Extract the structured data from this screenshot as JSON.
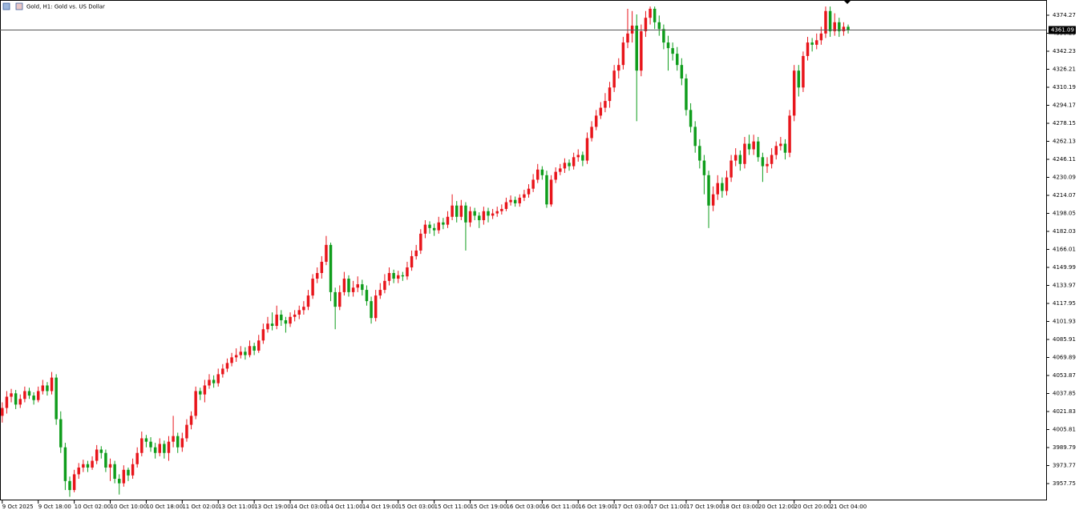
{
  "chart_data": {
    "type": "candlestick",
    "title": "Gold, H1: Gold vs. US Dollar",
    "up_color": "#e8151b",
    "down_color": "#0f9d1c",
    "current_price": 4361.09,
    "ylim": [
      3942.8,
      4387.8
    ],
    "yticks": [
      3957.75,
      3973.77,
      3989.79,
      4005.81,
      4021.83,
      4037.85,
      4053.87,
      4069.89,
      4085.91,
      4101.93,
      4117.95,
      4133.97,
      4149.99,
      4166.01,
      4182.03,
      4198.05,
      4214.07,
      4230.09,
      4246.11,
      4262.13,
      4278.15,
      4294.17,
      4310.19,
      4326.21,
      4342.23,
      4358.25,
      4374.27
    ],
    "xlim": [
      -0.5,
      232
    ],
    "xticks": [
      {
        "value": 0,
        "label": "9 Oct 2025"
      },
      {
        "value": 8,
        "label": "9 Oct 18:00"
      },
      {
        "value": 16,
        "label": "10 Oct 02:00"
      },
      {
        "value": 24,
        "label": "10 Oct 10:00"
      },
      {
        "value": 32,
        "label": "10 Oct 18:00"
      },
      {
        "value": 40,
        "label": "11 Oct 02:00"
      },
      {
        "value": 48,
        "label": "13 Oct 11:00"
      },
      {
        "value": 56,
        "label": "13 Oct 19:00"
      },
      {
        "value": 64,
        "label": "14 Oct 03:00"
      },
      {
        "value": 72,
        "label": "14 Oct 11:00"
      },
      {
        "value": 80,
        "label": "14 Oct 19:00"
      },
      {
        "value": 88,
        "label": "15 Oct 03:00"
      },
      {
        "value": 96,
        "label": "15 Oct 11:00"
      },
      {
        "value": 104,
        "label": "15 Oct 19:00"
      },
      {
        "value": 112,
        "label": "16 Oct 03:00"
      },
      {
        "value": 120,
        "label": "16 Oct 11:00"
      },
      {
        "value": 128,
        "label": "16 Oct 19:00"
      },
      {
        "value": 136,
        "label": "17 Oct 03:00"
      },
      {
        "value": 144,
        "label": "17 Oct 11:00"
      },
      {
        "value": 152,
        "label": "17 Oct 19:00"
      },
      {
        "value": 160,
        "label": "18 Oct 03:00"
      },
      {
        "value": 168,
        "label": "20 Oct 12:00"
      },
      {
        "value": 176,
        "label": "20 Oct 20:00"
      },
      {
        "value": 184,
        "label": "21 Oct 04:00"
      }
    ],
    "ohlc": [
      [
        4018,
        4030,
        4012,
        4025
      ],
      [
        4025,
        4040,
        4020,
        4035
      ],
      [
        4035,
        4042,
        4030,
        4038
      ],
      [
        4038,
        4041,
        4024,
        4028
      ],
      [
        4028,
        4037,
        4025,
        4033
      ],
      [
        4033,
        4044,
        4030,
        4040
      ],
      [
        4040,
        4043,
        4033,
        4036
      ],
      [
        4036,
        4039,
        4028,
        4032
      ],
      [
        4032,
        4044,
        4030,
        4040
      ],
      [
        4040,
        4050,
        4037,
        4045
      ],
      [
        4045,
        4048,
        4036,
        4040
      ],
      [
        4040,
        4057,
        4037,
        4052
      ],
      [
        4052,
        4055,
        4010,
        4015
      ],
      [
        4015,
        4022,
        3985,
        3990
      ],
      [
        3990,
        3994,
        3952,
        3960
      ],
      [
        3960,
        3964,
        3946,
        3952
      ],
      [
        3952,
        3970,
        3950,
        3966
      ],
      [
        3966,
        3976,
        3962,
        3972
      ],
      [
        3972,
        3979,
        3968,
        3975
      ],
      [
        3975,
        3978,
        3968,
        3972
      ],
      [
        3972,
        3982,
        3970,
        3978
      ],
      [
        3978,
        3992,
        3975,
        3988
      ],
      [
        3988,
        3991,
        3980,
        3985
      ],
      [
        3985,
        3988,
        3968,
        3972
      ],
      [
        3972,
        3980,
        3960,
        3975
      ],
      [
        3975,
        3978,
        3958,
        3962
      ],
      [
        3962,
        3966,
        3948,
        3958
      ],
      [
        3958,
        3974,
        3955,
        3970
      ],
      [
        3970,
        3972,
        3960,
        3965
      ],
      [
        3965,
        3980,
        3962,
        3975
      ],
      [
        3975,
        3990,
        3972,
        3985
      ],
      [
        3985,
        4004,
        3982,
        3998
      ],
      [
        3998,
        4001,
        3990,
        3995
      ],
      [
        3995,
        3999,
        3986,
        3990
      ],
      [
        3990,
        3994,
        3980,
        3985
      ],
      [
        3985,
        3998,
        3982,
        3993
      ],
      [
        3993,
        3996,
        3980,
        3985
      ],
      [
        3985,
        4000,
        3978,
        3995
      ],
      [
        3995,
        4018,
        3990,
        4000
      ],
      [
        4000,
        4003,
        3985,
        3990
      ],
      [
        3990,
        4003,
        3986,
        3998
      ],
      [
        3998,
        4015,
        3995,
        4010
      ],
      [
        4010,
        4022,
        4006,
        4018
      ],
      [
        4018,
        4044,
        4015,
        4040
      ],
      [
        4040,
        4043,
        4032,
        4037
      ],
      [
        4037,
        4050,
        4030,
        4045
      ],
      [
        4045,
        4055,
        4042,
        4050
      ],
      [
        4050,
        4054,
        4043,
        4047
      ],
      [
        4047,
        4060,
        4044,
        4055
      ],
      [
        4055,
        4064,
        4052,
        4060
      ],
      [
        4060,
        4069,
        4057,
        4065
      ],
      [
        4065,
        4074,
        4062,
        4070
      ],
      [
        4070,
        4078,
        4066,
        4072
      ],
      [
        4072,
        4080,
        4069,
        4075
      ],
      [
        4075,
        4079,
        4068,
        4072
      ],
      [
        4072,
        4085,
        4070,
        4080
      ],
      [
        4080,
        4083,
        4072,
        4076
      ],
      [
        4076,
        4090,
        4074,
        4085
      ],
      [
        4085,
        4100,
        4082,
        4095
      ],
      [
        4095,
        4106,
        4092,
        4100
      ],
      [
        4100,
        4110,
        4094,
        4098
      ],
      [
        4098,
        4116,
        4095,
        4108
      ],
      [
        4108,
        4112,
        4098,
        4103
      ],
      [
        4103,
        4106,
        4092,
        4100
      ],
      [
        4100,
        4110,
        4097,
        4106
      ],
      [
        4106,
        4112,
        4102,
        4108
      ],
      [
        4108,
        4116,
        4104,
        4112
      ],
      [
        4112,
        4120,
        4108,
        4115
      ],
      [
        4115,
        4130,
        4112,
        4125
      ],
      [
        4125,
        4144,
        4122,
        4140
      ],
      [
        4140,
        4150,
        4136,
        4145
      ],
      [
        4145,
        4160,
        4140,
        4155
      ],
      [
        4155,
        4178,
        4152,
        4170
      ],
      [
        4170,
        4172,
        4120,
        4128
      ],
      [
        4128,
        4132,
        4095,
        4115
      ],
      [
        4115,
        4134,
        4112,
        4128
      ],
      [
        4128,
        4146,
        4125,
        4140
      ],
      [
        4140,
        4143,
        4124,
        4128
      ],
      [
        4128,
        4138,
        4124,
        4132
      ],
      [
        4132,
        4142,
        4128,
        4135
      ],
      [
        4135,
        4139,
        4125,
        4130
      ],
      [
        4130,
        4134,
        4116,
        4120
      ],
      [
        4120,
        4124,
        4100,
        4105
      ],
      [
        4105,
        4130,
        4102,
        4125
      ],
      [
        4125,
        4136,
        4122,
        4130
      ],
      [
        4130,
        4144,
        4127,
        4138
      ],
      [
        4138,
        4150,
        4134,
        4145
      ],
      [
        4145,
        4148,
        4136,
        4140
      ],
      [
        4140,
        4147,
        4136,
        4143
      ],
      [
        4143,
        4146,
        4138,
        4142
      ],
      [
        4142,
        4155,
        4139,
        4150
      ],
      [
        4150,
        4165,
        4147,
        4160
      ],
      [
        4160,
        4170,
        4157,
        4165
      ],
      [
        4165,
        4184,
        4162,
        4180
      ],
      [
        4180,
        4192,
        4176,
        4188
      ],
      [
        4188,
        4191,
        4180,
        4185
      ],
      [
        4185,
        4189,
        4178,
        4183
      ],
      [
        4183,
        4195,
        4180,
        4190
      ],
      [
        4190,
        4194,
        4184,
        4188
      ],
      [
        4188,
        4200,
        4185,
        4195
      ],
      [
        4195,
        4215,
        4192,
        4205
      ],
      [
        4205,
        4209,
        4190,
        4195
      ],
      [
        4195,
        4210,
        4192,
        4205
      ],
      [
        4205,
        4208,
        4165,
        4190
      ],
      [
        4190,
        4204,
        4186,
        4200
      ],
      [
        4200,
        4203,
        4192,
        4196
      ],
      [
        4196,
        4199,
        4185,
        4192
      ],
      [
        4192,
        4204,
        4188,
        4200
      ],
      [
        4200,
        4203,
        4190,
        4196
      ],
      [
        4196,
        4202,
        4193,
        4198
      ],
      [
        4198,
        4204,
        4195,
        4200
      ],
      [
        4200,
        4206,
        4197,
        4202
      ],
      [
        4202,
        4212,
        4200,
        4208
      ],
      [
        4208,
        4214,
        4205,
        4210
      ],
      [
        4210,
        4213,
        4204,
        4207
      ],
      [
        4207,
        4215,
        4204,
        4212
      ],
      [
        4212,
        4219,
        4209,
        4215
      ],
      [
        4215,
        4224,
        4212,
        4220
      ],
      [
        4220,
        4233,
        4217,
        4228
      ],
      [
        4228,
        4242,
        4225,
        4237
      ],
      [
        4237,
        4240,
        4228,
        4232
      ],
      [
        4232,
        4236,
        4203,
        4206
      ],
      [
        4206,
        4232,
        4204,
        4228
      ],
      [
        4228,
        4239,
        4225,
        4235
      ],
      [
        4235,
        4242,
        4232,
        4238
      ],
      [
        4238,
        4247,
        4234,
        4243
      ],
      [
        4243,
        4246,
        4236,
        4240
      ],
      [
        4240,
        4252,
        4237,
        4248
      ],
      [
        4248,
        4255,
        4244,
        4250
      ],
      [
        4250,
        4253,
        4240,
        4245
      ],
      [
        4245,
        4270,
        4242,
        4265
      ],
      [
        4265,
        4280,
        4262,
        4275
      ],
      [
        4275,
        4290,
        4272,
        4285
      ],
      [
        4285,
        4297,
        4282,
        4292
      ],
      [
        4292,
        4305,
        4288,
        4298
      ],
      [
        4298,
        4315,
        4292,
        4310
      ],
      [
        4310,
        4330,
        4306,
        4325
      ],
      [
        4325,
        4336,
        4318,
        4330
      ],
      [
        4330,
        4355,
        4326,
        4350
      ],
      [
        4350,
        4380,
        4345,
        4358
      ],
      [
        4358,
        4378,
        4350,
        4365
      ],
      [
        4365,
        4375,
        4280,
        4325
      ],
      [
        4325,
        4366,
        4320,
        4360
      ],
      [
        4360,
        4378,
        4355,
        4372
      ],
      [
        4372,
        4382,
        4366,
        4380
      ],
      [
        4380,
        4382,
        4362,
        4368
      ],
      [
        4368,
        4374,
        4356,
        4362
      ],
      [
        4362,
        4366,
        4344,
        4350
      ],
      [
        4350,
        4356,
        4325,
        4345
      ],
      [
        4345,
        4350,
        4334,
        4340
      ],
      [
        4340,
        4346,
        4325,
        4330
      ],
      [
        4330,
        4336,
        4312,
        4318
      ],
      [
        4318,
        4322,
        4285,
        4290
      ],
      [
        4290,
        4296,
        4270,
        4275
      ],
      [
        4275,
        4280,
        4252,
        4258
      ],
      [
        4258,
        4264,
        4238,
        4245
      ],
      [
        4245,
        4250,
        4215,
        4232
      ],
      [
        4232,
        4236,
        4185,
        4205
      ],
      [
        4205,
        4222,
        4200,
        4215
      ],
      [
        4215,
        4232,
        4210,
        4225
      ],
      [
        4225,
        4230,
        4212,
        4218
      ],
      [
        4218,
        4236,
        4214,
        4230
      ],
      [
        4230,
        4250,
        4226,
        4245
      ],
      [
        4245,
        4256,
        4240,
        4250
      ],
      [
        4250,
        4254,
        4236,
        4242
      ],
      [
        4242,
        4266,
        4238,
        4260
      ],
      [
        4260,
        4268,
        4250,
        4255
      ],
      [
        4255,
        4268,
        4250,
        4262
      ],
      [
        4262,
        4266,
        4244,
        4248
      ],
      [
        4248,
        4252,
        4226,
        4240
      ],
      [
        4240,
        4248,
        4234,
        4242
      ],
      [
        4242,
        4256,
        4238,
        4250
      ],
      [
        4250,
        4262,
        4246,
        4258
      ],
      [
        4258,
        4266,
        4254,
        4260
      ],
      [
        4260,
        4264,
        4246,
        4252
      ],
      [
        4252,
        4290,
        4248,
        4285
      ],
      [
        4285,
        4330,
        4280,
        4325
      ],
      [
        4325,
        4330,
        4302,
        4310
      ],
      [
        4310,
        4342,
        4306,
        4338
      ],
      [
        4338,
        4355,
        4334,
        4350
      ],
      [
        4350,
        4354,
        4342,
        4348
      ],
      [
        4348,
        4358,
        4344,
        4352
      ],
      [
        4352,
        4364,
        4348,
        4358
      ],
      [
        4358,
        4382,
        4354,
        4378
      ],
      [
        4378,
        4382,
        4355,
        4360
      ],
      [
        4360,
        4376,
        4356,
        4368
      ],
      [
        4368,
        4372,
        4355,
        4360
      ],
      [
        4360,
        4368,
        4356,
        4364
      ],
      [
        4364,
        4366,
        4358,
        4361.09
      ]
    ]
  }
}
